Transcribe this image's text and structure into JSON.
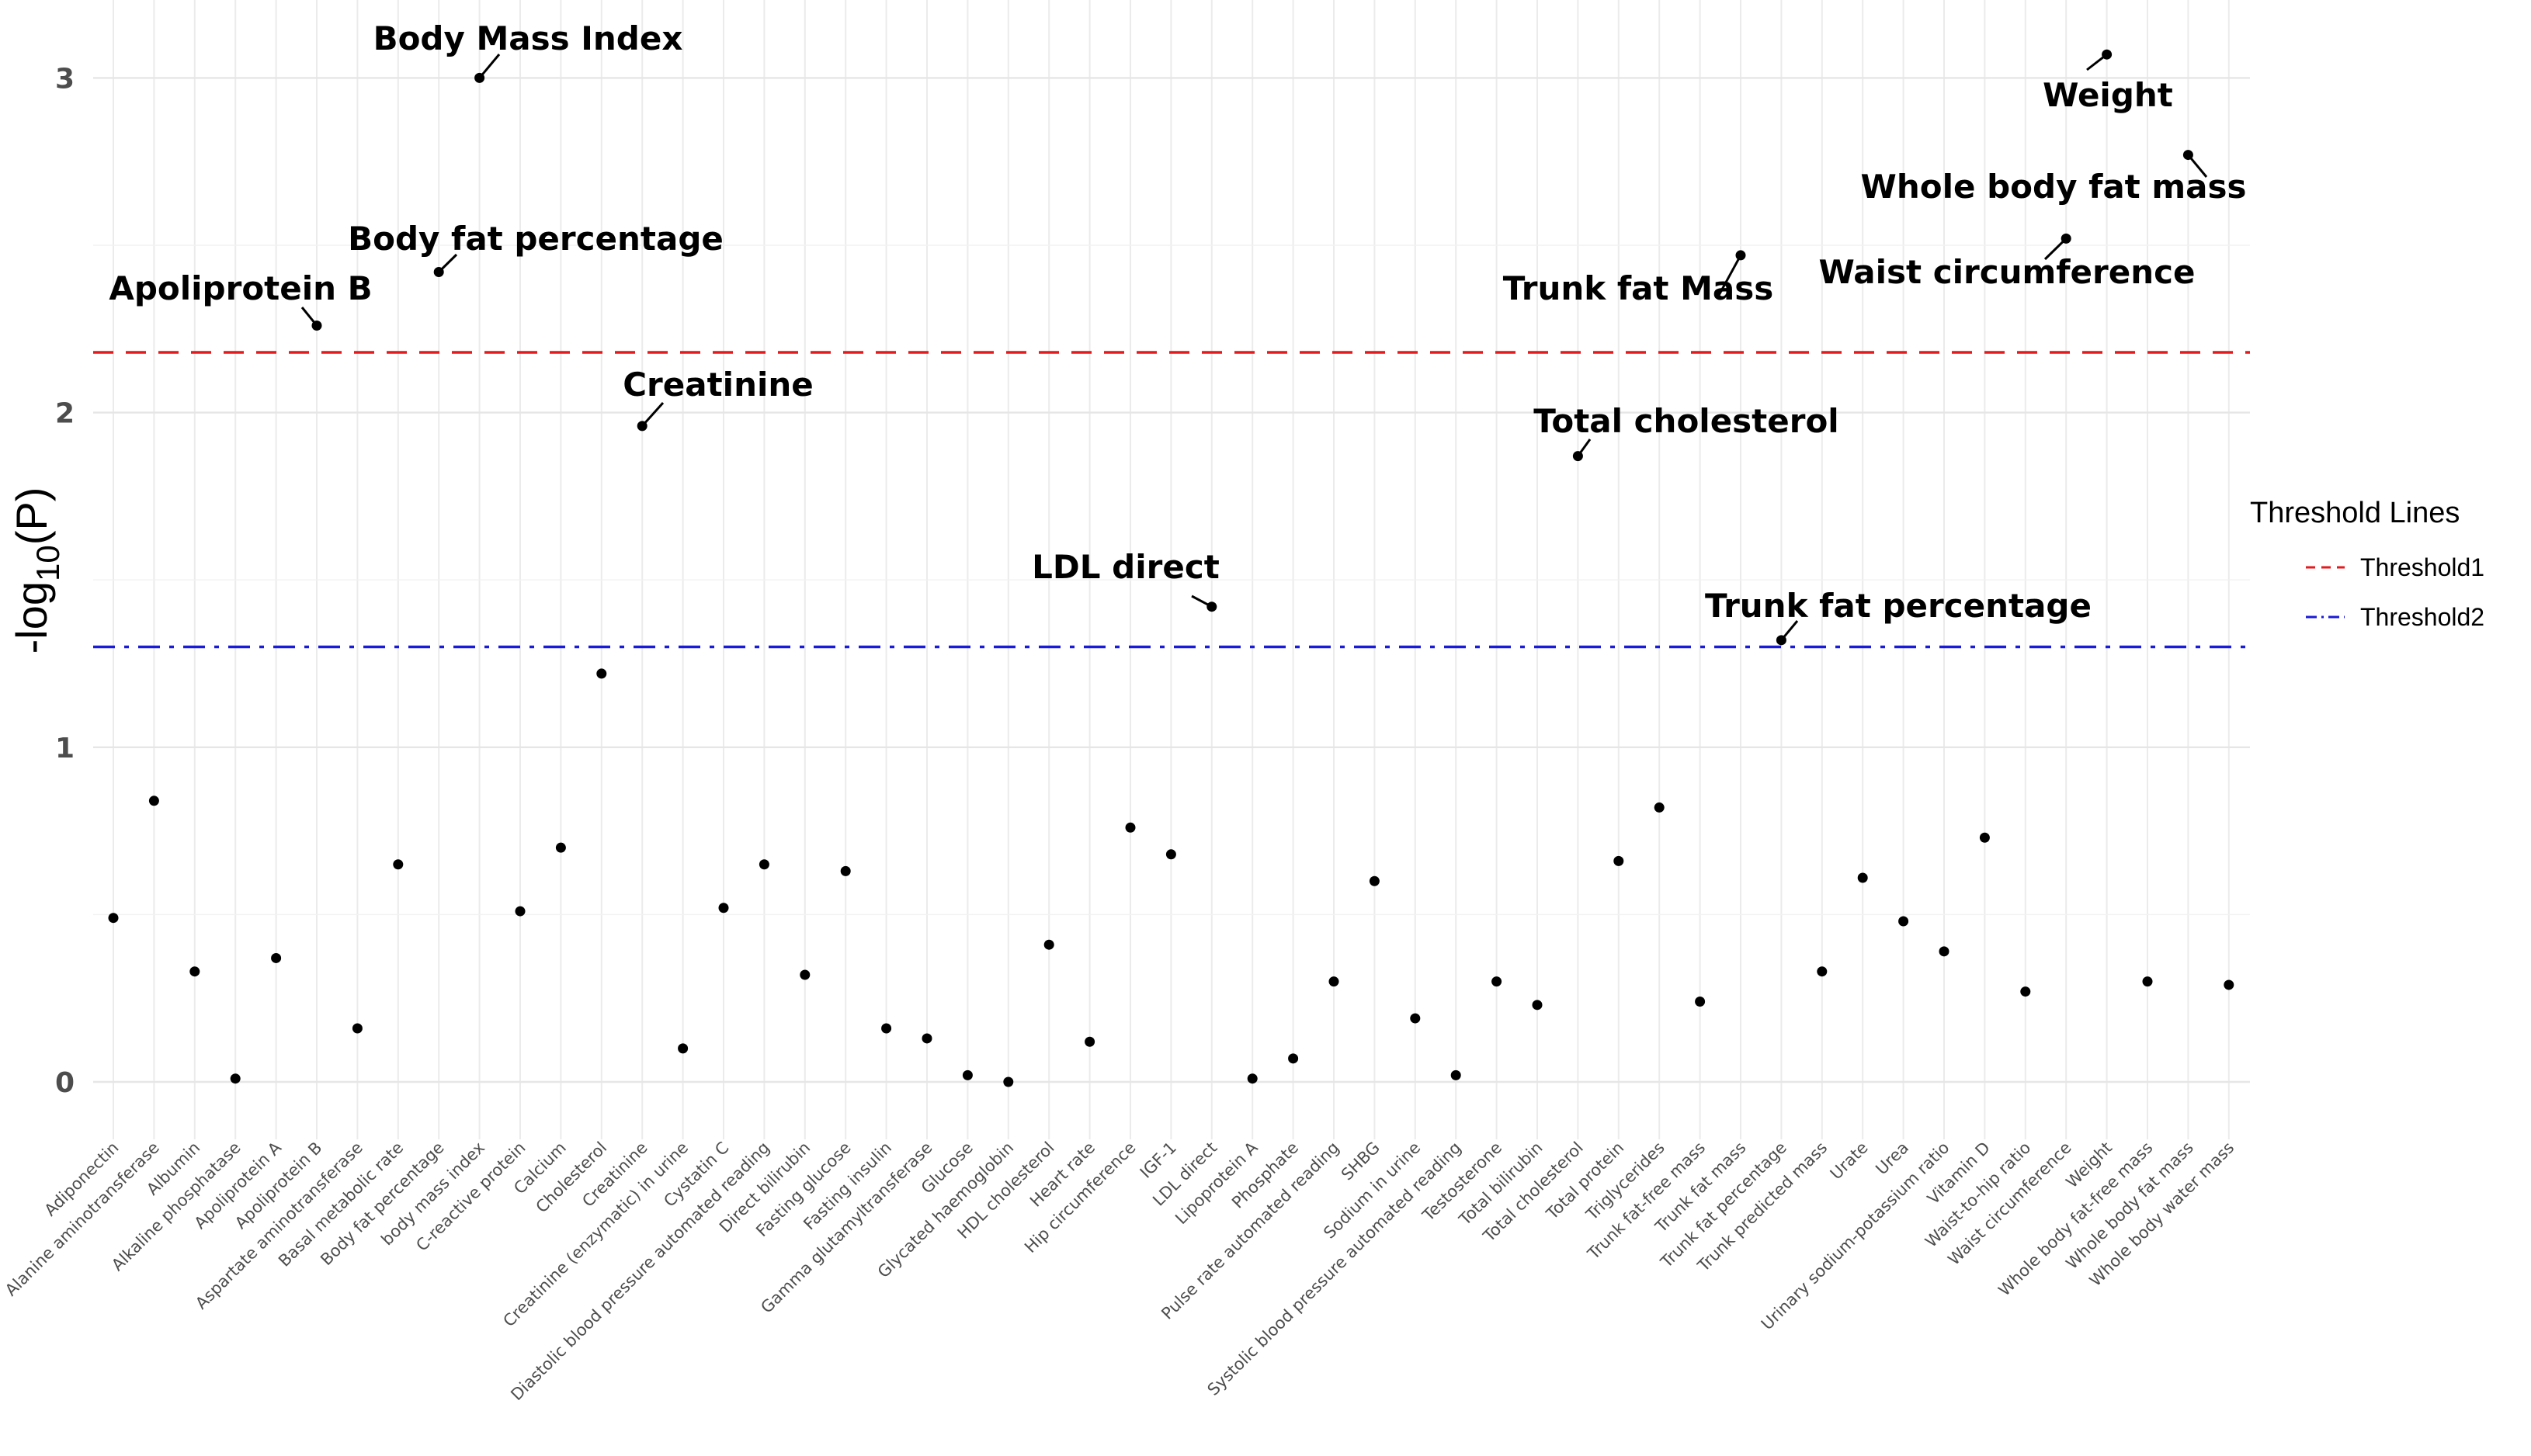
{
  "chart_data": {
    "type": "scatter",
    "title": "",
    "xlabel": "",
    "ylabel": "-log",
    "ylabel_sub": "10",
    "ylabel_suffix": "(P)",
    "ylim": [
      -0.15,
      3.2
    ],
    "yticks": [
      0,
      1,
      2,
      3
    ],
    "grid": true,
    "categories": [
      "Adiponectin",
      "Alanine aminotransferase",
      "Albumin",
      "Alkaline phosphatase",
      "Apoliprotein A",
      "Apoliprotein B",
      "Aspartate aminotransferase",
      "Basal metabolic rate",
      "Body fat percentage",
      "body mass index",
      "C-reactive protein",
      "Calcium",
      "Cholesterol",
      "Creatinine",
      "Creatinine (enzymatic) in urine",
      "Cystatin C",
      "Diastolic blood pressure  automated reading",
      "Direct bilirubin",
      "Fasting glucose",
      "Fasting insulin",
      "Gamma glutamyltransferase",
      "Glucose",
      "Glycated haemoglobin",
      "HDL cholesterol",
      "Heart rate",
      "Hip circumference",
      "IGF-1",
      "LDL direct",
      "Lipoprotein A",
      "Phosphate",
      "Pulse rate  automated reading",
      "SHBG",
      "Sodium in urine",
      "Systolic blood pressure  automated reading",
      "Testosterone",
      "Total bilirubin",
      "Total cholesterol",
      "Total protein",
      "Triglycerides",
      "Trunk fat-free mass",
      "Trunk fat mass",
      "Trunk fat percentage",
      "Trunk predicted mass",
      "Urate",
      "Urea",
      "Urinary sodium-potassium ratio",
      "Vitamin D",
      "Waist-to-hip ratio",
      "Waist circumference",
      "Weight",
      "Whole body fat-free mass",
      "Whole body fat mass",
      "Whole body water mass"
    ],
    "values": [
      0.49,
      0.84,
      0.33,
      0.01,
      0.37,
      2.26,
      0.16,
      0.65,
      2.42,
      3.0,
      0.51,
      0.7,
      1.22,
      1.96,
      0.1,
      0.52,
      0.65,
      0.32,
      0.63,
      0.16,
      0.13,
      0.02,
      0.0,
      0.41,
      0.12,
      0.76,
      0.68,
      1.42,
      0.01,
      0.07,
      0.3,
      0.6,
      0.19,
      0.02,
      0.3,
      0.23,
      1.87,
      0.66,
      0.82,
      0.24,
      2.47,
      1.32,
      0.33,
      0.61,
      0.48,
      0.39,
      0.73,
      0.27,
      2.52,
      3.07,
      0.3,
      2.77,
      0.29
    ],
    "threshold_lines": [
      {
        "name": "Threshold1",
        "value": 2.18,
        "color": "#e41a1c",
        "style": "dashed"
      },
      {
        "name": "Threshold2",
        "value": 1.3,
        "color": "#1a1ad9",
        "style": "dotdash"
      }
    ],
    "legend": {
      "title": "Threshold Lines",
      "position": "right",
      "entries": [
        "Threshold1",
        "Threshold2"
      ]
    },
    "annotations": [
      {
        "label": "Body Mass Index",
        "category": "body mass index"
      },
      {
        "label": "Weight",
        "category": "Weight"
      },
      {
        "label": "Whole body fat mass",
        "category": "Whole body fat mass"
      },
      {
        "label": "Body fat percentage",
        "category": "Body fat percentage"
      },
      {
        "label": "Apoliprotein B",
        "category": "Apoliprotein B"
      },
      {
        "label": "Trunk fat Mass",
        "category": "Trunk fat mass"
      },
      {
        "label": "Waist circumference",
        "category": "Waist circumference"
      },
      {
        "label": "Creatinine",
        "category": "Creatinine"
      },
      {
        "label": "Total cholesterol",
        "category": "Total cholesterol"
      },
      {
        "label": "LDL direct",
        "category": "LDL direct"
      },
      {
        "label": "Trunk fat percentage",
        "category": "Trunk fat percentage"
      }
    ]
  }
}
